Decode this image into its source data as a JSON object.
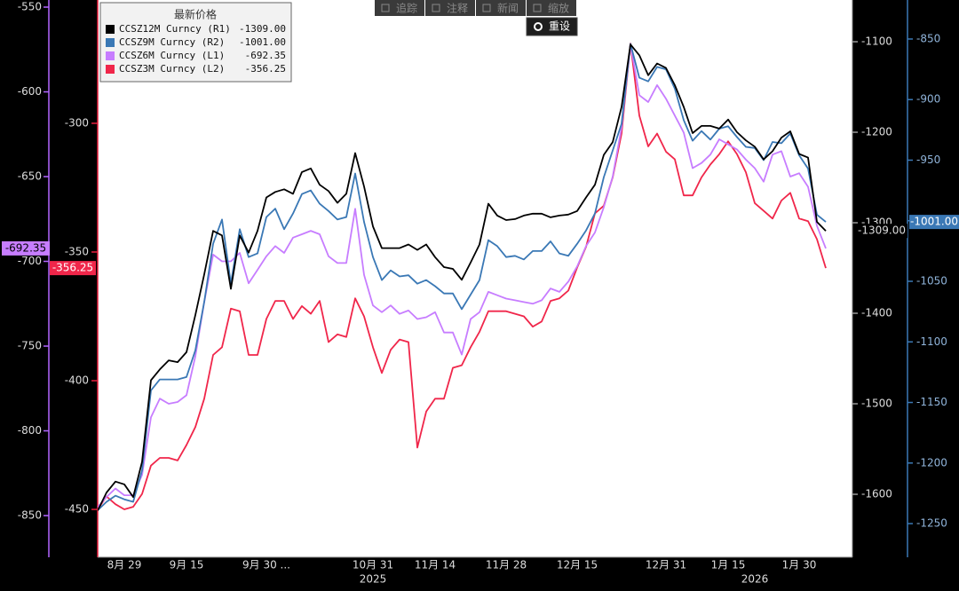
{
  "chart_data": {
    "type": "line",
    "legend_title": "最新价格",
    "categories": [
      null,
      null,
      null,
      "8月 29",
      null,
      null,
      null,
      null,
      null,
      null,
      "9月 15",
      null,
      null,
      null,
      null,
      null,
      null,
      null,
      null,
      "9月 30 ...",
      null,
      null,
      null,
      null,
      null,
      null,
      null,
      null,
      null,
      null,
      null,
      "10月 31",
      null,
      null,
      null,
      null,
      null,
      null,
      "11月 14",
      null,
      null,
      null,
      null,
      null,
      null,
      null,
      "11月 28",
      null,
      null,
      null,
      null,
      null,
      null,
      null,
      "12月 15",
      null,
      null,
      null,
      null,
      null,
      null,
      null,
      null,
      null,
      "12月 31",
      null,
      null,
      null,
      null,
      null,
      null,
      "1月 15",
      null,
      null,
      null,
      null,
      null,
      null,
      null,
      "1月 30",
      null,
      null,
      null
    ],
    "x_years": [
      "2025",
      "2026"
    ],
    "ylim": [
      -874.6,
      -545.8
    ],
    "yticks": [
      -550,
      -600,
      -650,
      -700,
      -750,
      -800,
      -850
    ],
    "y2lim": [
      -468.6,
      -252.1
    ],
    "y2ticks": [
      -300,
      -350,
      -400,
      -450
    ],
    "y3lim": [
      -1669.6,
      -1053.9
    ],
    "y3ticks": [
      -1100,
      -1200,
      -1300,
      -1400,
      -1500,
      -1600
    ],
    "y4lim": [
      -1277.8,
      -817.8
    ],
    "y4ticks": [
      -850,
      -900,
      -950,
      -1000,
      -1050,
      -1100,
      -1150,
      -1200,
      -1250
    ],
    "series": [
      {
        "name": "CCSZ12M Curncy (R1)",
        "color": "#000000",
        "axis": "y3",
        "last": {
          "value": -1309,
          "label": "-1309.00"
        },
        "values": [
          -1618,
          -1598,
          -1586,
          -1589,
          -1603,
          -1564,
          -1474,
          -1462,
          -1452,
          -1454,
          -1443,
          -1402,
          -1357,
          -1309,
          -1314,
          -1373,
          -1314,
          -1333,
          -1309,
          -1272,
          -1266,
          -1263,
          -1268,
          -1244,
          -1240,
          -1258,
          -1265,
          -1278,
          -1268,
          -1223,
          -1260,
          -1304,
          -1328,
          -1328,
          -1328,
          -1324,
          -1330,
          -1324,
          -1338,
          -1349,
          -1351,
          -1363,
          -1344,
          -1324,
          -1279,
          -1292,
          -1297,
          -1296,
          -1292,
          -1290,
          -1290,
          -1294,
          -1292,
          -1291,
          -1287,
          -1272,
          -1258,
          -1225,
          -1211,
          -1172,
          -1103,
          -1115,
          -1137,
          -1124,
          -1129,
          -1148,
          -1172,
          -1201,
          -1193,
          -1193,
          -1196,
          -1186,
          -1200,
          -1209,
          -1216,
          -1230,
          -1221,
          -1206,
          -1199,
          -1224,
          -1228,
          -1299,
          -1309
        ]
      },
      {
        "name": "CCSZ9M Curncy (R2)",
        "color": "#3a78b5",
        "axis": "y4",
        "last": {
          "value": -1001,
          "label": "-1001.00"
        },
        "values": [
          -1239,
          -1232,
          -1227,
          -1230,
          -1232,
          -1206,
          -1140,
          -1131,
          -1131,
          -1131,
          -1129,
          -1107,
          -1067,
          -1019,
          -999,
          -1052,
          -1007,
          -1030,
          -1027,
          -997,
          -990,
          -1007,
          -994,
          -978,
          -975,
          -986,
          -992,
          -999,
          -997,
          -961,
          -1001,
          -1030,
          -1049,
          -1041,
          -1046,
          -1045,
          -1052,
          -1049,
          -1054,
          -1060,
          -1060,
          -1073,
          -1061,
          -1049,
          -1016,
          -1021,
          -1030,
          -1029,
          -1032,
          -1025,
          -1025,
          -1017,
          -1027,
          -1029,
          -1019,
          -1008,
          -994,
          -964,
          -942,
          -920,
          -854,
          -882,
          -885,
          -873,
          -875,
          -891,
          -917,
          -934,
          -926,
          -933,
          -924,
          -922,
          -931,
          -939,
          -940,
          -950,
          -935,
          -936,
          -928,
          -946,
          -957,
          -995,
          -1001
        ]
      },
      {
        "name": "CCSZ6M Curncy (L1)",
        "color": "#c77dff",
        "axis": "y",
        "last": {
          "value": -692.35,
          "label": "-692.35"
        },
        "values": [
          -845,
          -839,
          -834,
          -838,
          -838,
          -826,
          -792,
          -781,
          -784,
          -783,
          -779,
          -756,
          -724,
          -696,
          -700,
          -700,
          -695,
          -713,
          -705,
          -697,
          -691,
          -695,
          -686,
          -684,
          -682,
          -684,
          -697,
          -701,
          -701,
          -669,
          -708,
          -726,
          -730,
          -726,
          -731,
          -729,
          -734,
          -733,
          -730,
          -742,
          -742,
          -755,
          -734,
          -730,
          -718,
          -720,
          -722,
          -723,
          -724,
          -725,
          -723,
          -716,
          -718,
          -712,
          -703,
          -691,
          -683,
          -668,
          -650,
          -621,
          -572,
          -602,
          -606,
          -596,
          -604,
          -614,
          -624,
          -645,
          -642,
          -637,
          -628,
          -631,
          -634,
          -640,
          -645,
          -653,
          -637,
          -635,
          -650,
          -648,
          -656,
          -679,
          -692.35
        ]
      },
      {
        "name": "CCSZ3M Curncy (L2)",
        "color": "#f0264a",
        "axis": "y2",
        "last": {
          "value": -356.25,
          "label": "-356.25"
        },
        "values": [
          -450,
          -445,
          -448,
          -450,
          -449,
          -444,
          -433,
          -430,
          -430,
          -431,
          -425,
          -418,
          -407,
          -390,
          -387,
          -372,
          -373,
          -390,
          -390,
          -376,
          -369,
          -369,
          -376,
          -371,
          -374,
          -369,
          -385,
          -382,
          -383,
          -368,
          -375,
          -387,
          -397,
          -388,
          -384,
          -385,
          -426,
          -412,
          -407,
          -407,
          -395,
          -394,
          -387,
          -381,
          -373,
          -373,
          -373,
          -374,
          -375,
          -379,
          -377,
          -369,
          -368,
          -365,
          -356,
          -348,
          -335,
          -332,
          -321,
          -304,
          -269,
          -297,
          -309,
          -304,
          -311,
          -314,
          -328,
          -328,
          -321,
          -316,
          -312,
          -307,
          -312,
          -319,
          -331,
          -334,
          -337,
          -330,
          -327,
          -337,
          -338,
          -345,
          -356.25
        ]
      }
    ]
  },
  "toolbar": {
    "buttons": [
      "追踪",
      "注释",
      "新闻",
      "缩放"
    ],
    "reset": "重设"
  }
}
